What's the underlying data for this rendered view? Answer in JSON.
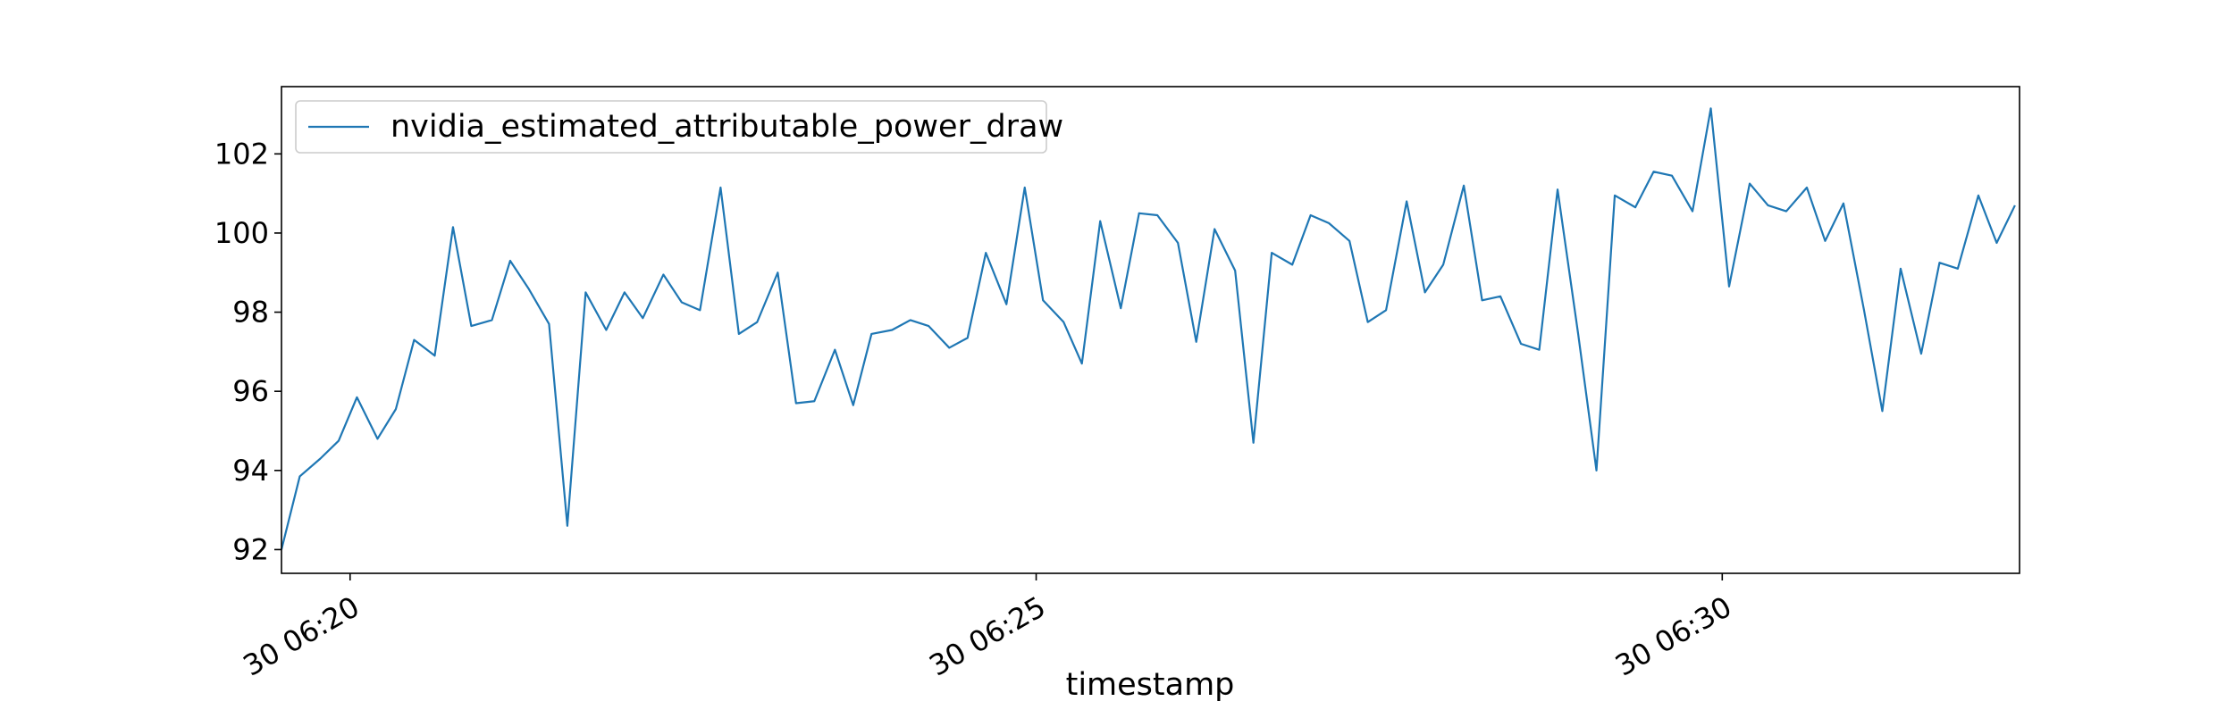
{
  "chart_data": {
    "type": "line",
    "xlabel": "timestamp",
    "ylabel": "",
    "ylim": [
      91.4,
      103.7
    ],
    "xlim": [
      "30 06:19:30",
      "30 06:32:10"
    ],
    "x_ticks": [
      {
        "t": "30 06:20:00",
        "label": "30 06:20"
      },
      {
        "t": "30 06:25:00",
        "label": "30 06:25"
      },
      {
        "t": "30 06:30:00",
        "label": "30 06:30"
      }
    ],
    "y_ticks": [
      92,
      94,
      96,
      98,
      100,
      102
    ],
    "grid": false,
    "legend": {
      "placement": "top-left"
    },
    "colors": {
      "line": "#1f77b4",
      "axes": "#000000",
      "legend_border": "#cccccc"
    },
    "series": [
      {
        "name": "nvidia_estimated_attributable_power_draw",
        "x": [
          "30 06:19:30",
          "30 06:19:38",
          "30 06:19:47",
          "30 06:19:55",
          "30 06:20:03",
          "30 06:20:12",
          "30 06:20:20",
          "30 06:20:28",
          "30 06:20:37",
          "30 06:20:45",
          "30 06:20:53",
          "30 06:21:02",
          "30 06:21:10",
          "30 06:21:18",
          "30 06:21:27",
          "30 06:21:35",
          "30 06:21:43",
          "30 06:21:52",
          "30 06:22:00",
          "30 06:22:08",
          "30 06:22:17",
          "30 06:22:25",
          "30 06:22:33",
          "30 06:22:42",
          "30 06:22:50",
          "30 06:22:58",
          "30 06:23:07",
          "30 06:23:15",
          "30 06:23:23",
          "30 06:23:32",
          "30 06:23:40",
          "30 06:23:48",
          "30 06:23:57",
          "30 06:24:05",
          "30 06:24:13",
          "30 06:24:22",
          "30 06:24:30",
          "30 06:24:38",
          "30 06:24:47",
          "30 06:24:55",
          "30 06:25:03",
          "30 06:25:12",
          "30 06:25:20",
          "30 06:25:28",
          "30 06:25:37",
          "30 06:25:45",
          "30 06:25:53",
          "30 06:26:02",
          "30 06:26:10",
          "30 06:26:18",
          "30 06:26:27",
          "30 06:26:35",
          "30 06:26:43",
          "30 06:26:52",
          "30 06:27:00",
          "30 06:27:08",
          "30 06:27:17",
          "30 06:27:25",
          "30 06:27:33",
          "30 06:27:42",
          "30 06:27:50",
          "30 06:27:58",
          "30 06:28:07",
          "30 06:28:15",
          "30 06:28:23",
          "30 06:28:32",
          "30 06:28:40",
          "30 06:28:48",
          "30 06:28:57",
          "30 06:29:05",
          "30 06:29:13",
          "30 06:29:22",
          "30 06:29:30",
          "30 06:29:38",
          "30 06:29:47",
          "30 06:29:55",
          "30 06:30:03",
          "30 06:30:12",
          "30 06:30:20",
          "30 06:30:28",
          "30 06:30:37",
          "30 06:30:45",
          "30 06:30:53",
          "30 06:31:02",
          "30 06:31:10",
          "30 06:31:18",
          "30 06:31:27",
          "30 06:31:35",
          "30 06:31:43",
          "30 06:31:52",
          "30 06:32:00",
          "30 06:32:08"
        ],
        "values": [
          92.0,
          93.85,
          94.3,
          94.75,
          95.85,
          94.8,
          95.55,
          97.3,
          96.9,
          100.15,
          97.65,
          97.8,
          99.3,
          98.6,
          97.7,
          92.6,
          98.5,
          97.55,
          98.5,
          97.85,
          98.95,
          98.25,
          98.05,
          101.15,
          97.45,
          97.75,
          99.0,
          95.7,
          95.75,
          97.05,
          95.65,
          97.45,
          97.55,
          97.8,
          97.65,
          97.1,
          97.35,
          99.5,
          98.2,
          101.15,
          98.3,
          97.75,
          96.7,
          100.3,
          98.1,
          100.5,
          100.45,
          99.75,
          97.25,
          100.1,
          99.05,
          94.7,
          99.5,
          99.2,
          100.45,
          100.25,
          99.8,
          97.75,
          98.05,
          100.8,
          98.5,
          99.2,
          101.2,
          98.3,
          98.4,
          97.2,
          97.05,
          101.1,
          97.45,
          94.0,
          100.95,
          100.65,
          101.55,
          101.45,
          100.55,
          103.15,
          98.65,
          101.25,
          100.7,
          100.55,
          101.15,
          99.8,
          100.75,
          98.05,
          95.5,
          99.1,
          96.95,
          99.25,
          99.1,
          100.95,
          99.75,
          100.7
        ]
      }
    ]
  }
}
